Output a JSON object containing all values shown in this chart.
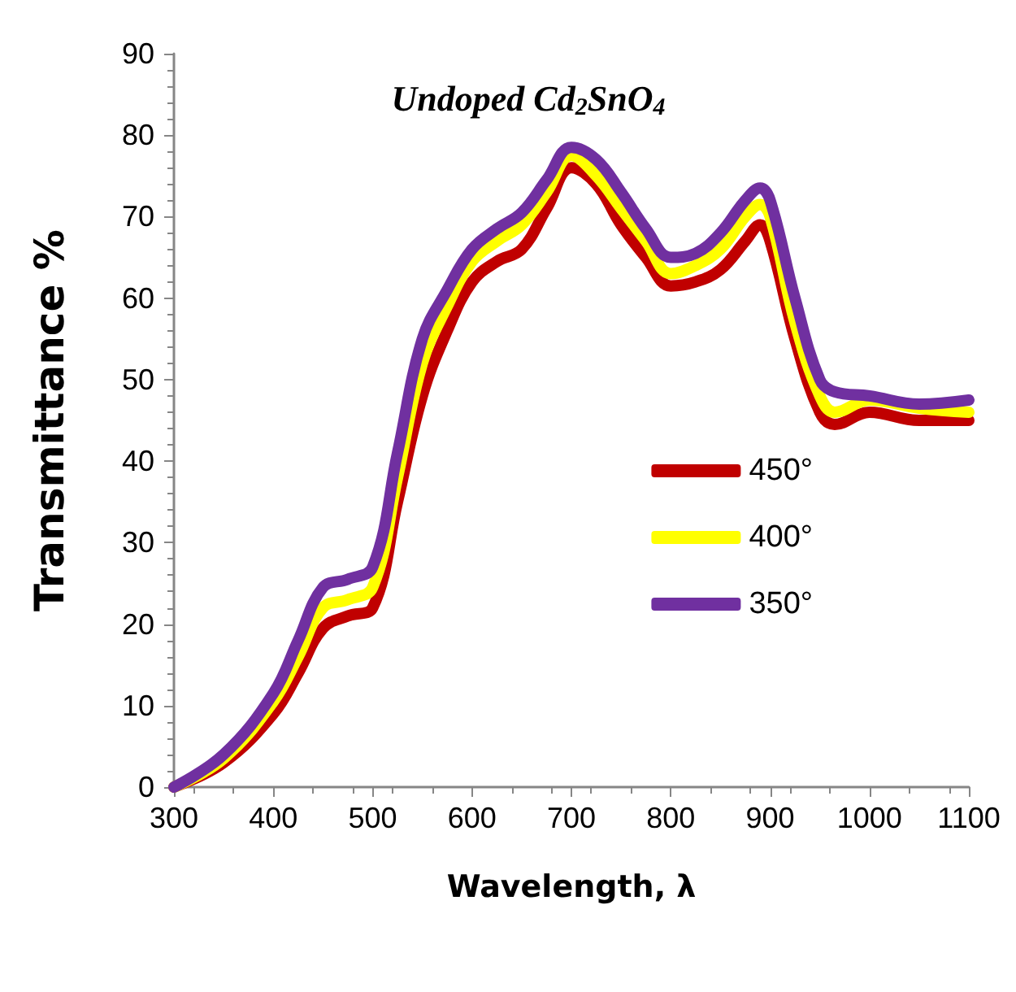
{
  "chart_data": {
    "type": "line",
    "title": "Undoped Cd$_{2}$SnO$_{4}$",
    "xlabel": "Wavelength, λ",
    "ylabel": "Transmittance %",
    "x": [
      300,
      350,
      400,
      425,
      450,
      475,
      500,
      525,
      550,
      575,
      600,
      625,
      650,
      675,
      700,
      725,
      750,
      775,
      800,
      825,
      850,
      875,
      890,
      900,
      925,
      950,
      965,
      1000,
      1050,
      1100
    ],
    "series": [
      {
        "name": "450°",
        "color": "#c00000",
        "values": [
          0,
          3,
          9,
          14,
          19.5,
          21,
          22,
          35,
          48,
          56,
          62,
          64.5,
          66,
          71,
          76,
          74,
          69,
          65,
          61.5,
          62,
          63.5,
          67,
          69,
          67,
          55,
          46,
          44.5,
          46,
          45,
          45
        ]
      },
      {
        "name": "400°",
        "color": "#ffff00",
        "values": [
          0,
          3.5,
          10.5,
          16,
          22,
          23,
          24.5,
          38,
          52,
          59,
          64.5,
          67,
          69,
          73,
          77.5,
          75,
          71,
          67,
          63,
          64,
          66,
          70,
          71.5,
          70,
          57,
          48,
          46,
          47.5,
          46.5,
          46
        ]
      },
      {
        "name": "350°",
        "color": "#7030a0",
        "values": [
          0,
          4,
          11.5,
          18,
          24.5,
          25.5,
          27,
          41,
          55,
          61,
          66,
          68.5,
          70.5,
          74.5,
          78.5,
          77,
          73,
          68.5,
          65,
          65.5,
          68,
          72,
          73.5,
          72,
          60,
          50,
          48.5,
          48,
          47,
          47.5
        ]
      }
    ],
    "xlim": [
      300,
      1100
    ],
    "xticks": [
      300,
      400,
      500,
      600,
      700,
      800,
      900,
      1000,
      1100
    ],
    "ylim": [
      0,
      90
    ],
    "yticks": [
      0,
      10,
      20,
      30,
      40,
      50,
      60,
      70,
      80,
      90
    ],
    "grid": false,
    "legend": "right",
    "marker": "none",
    "line_style": "solid"
  }
}
